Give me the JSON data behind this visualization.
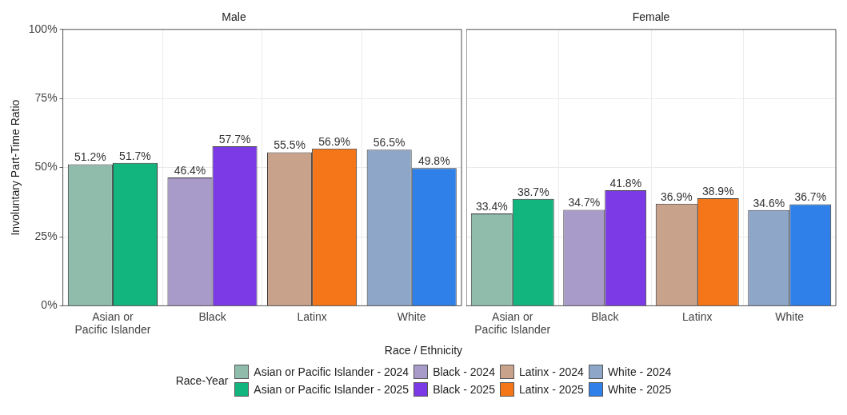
{
  "chart_data": [
    {
      "type": "bar",
      "title": "Male",
      "xlabel": "Race / Ethnicity",
      "ylabel": "Involuntary Part-Time Ratio",
      "legend_title": "Race-Year",
      "legend": "bottom",
      "grid": true,
      "categories": [
        "Asian or Pacific Islander",
        "Black",
        "Latinx",
        "White"
      ],
      "ylim": [
        0,
        100
      ],
      "yticks": [
        {
          "value": 0,
          "label": "0%"
        },
        {
          "value": 25,
          "label": "25%"
        },
        {
          "value": 50,
          "label": "50%"
        },
        {
          "value": 75,
          "label": "75%"
        },
        {
          "value": 100,
          "label": "100%"
        }
      ],
      "series": [
        {
          "name": "Asian or Pacific Islander - 2024",
          "color": "#8fbcab",
          "values": [
            51.2,
            null,
            null,
            null
          ],
          "value_labels": [
            "51.2%",
            null,
            null,
            null
          ]
        },
        {
          "name": "Asian or Pacific Islander - 2025",
          "color": "#13b57f",
          "values": [
            51.7,
            null,
            null,
            null
          ],
          "value_labels": [
            "51.7%",
            null,
            null,
            null
          ]
        },
        {
          "name": "Black - 2024",
          "color": "#a89ac9",
          "values": [
            null,
            46.4,
            null,
            null
          ],
          "value_labels": [
            null,
            "46.4%",
            null,
            null
          ]
        },
        {
          "name": "Black - 2025",
          "color": "#7b3ae6",
          "values": [
            null,
            57.7,
            null,
            null
          ],
          "value_labels": [
            null,
            "57.7%",
            null,
            null
          ]
        },
        {
          "name": "Latinx - 2024",
          "color": "#c9a28b",
          "values": [
            null,
            null,
            55.5,
            null
          ],
          "value_labels": [
            null,
            null,
            "55.5%",
            null
          ]
        },
        {
          "name": "Latinx - 2025",
          "color": "#f57618",
          "values": [
            null,
            null,
            56.9,
            null
          ],
          "value_labels": [
            null,
            null,
            "56.9%",
            null
          ]
        },
        {
          "name": "White - 2024",
          "color": "#8ea6c8",
          "values": [
            null,
            null,
            null,
            56.5
          ],
          "value_labels": [
            null,
            null,
            null,
            "56.5%"
          ]
        },
        {
          "name": "White - 2025",
          "color": "#2f80e8",
          "values": [
            null,
            null,
            null,
            49.8
          ],
          "value_labels": [
            null,
            null,
            null,
            "49.8%"
          ]
        }
      ]
    },
    {
      "type": "bar",
      "title": "Female",
      "grid": true,
      "tick_labels": "x",
      "categories": [
        "Asian or Pacific Islander",
        "Black",
        "Latinx",
        "White"
      ],
      "ylim": [
        0,
        100
      ],
      "yticks": [
        0,
        25,
        50,
        75,
        100
      ],
      "series": [
        {
          "color": "#8fbcab",
          "values": [
            33.4,
            null,
            null,
            null
          ],
          "value_labels": [
            "33.4%",
            null,
            null,
            null
          ]
        },
        {
          "color": "#13b57f",
          "values": [
            38.7,
            null,
            null,
            null
          ],
          "value_labels": [
            "38.7%",
            null,
            null,
            null
          ]
        },
        {
          "color": "#a89ac9",
          "values": [
            null,
            34.7,
            null,
            null
          ],
          "value_labels": [
            null,
            "34.7%",
            null,
            null
          ]
        },
        {
          "color": "#7b3ae6",
          "values": [
            null,
            41.8,
            null,
            null
          ],
          "value_labels": [
            null,
            "41.8%",
            null,
            null
          ]
        },
        {
          "color": "#c9a28b",
          "values": [
            null,
            null,
            36.9,
            null
          ],
          "value_labels": [
            null,
            null,
            "36.9%",
            null
          ]
        },
        {
          "color": "#f57618",
          "values": [
            null,
            null,
            38.9,
            null
          ],
          "value_labels": [
            null,
            null,
            "38.9%",
            null
          ]
        },
        {
          "color": "#8ea6c8",
          "values": [
            null,
            null,
            null,
            34.6
          ],
          "value_labels": [
            null,
            null,
            null,
            "34.6%"
          ]
        },
        {
          "color": "#2f80e8",
          "values": [
            null,
            null,
            null,
            36.7
          ],
          "value_labels": [
            null,
            null,
            null,
            "36.7%"
          ]
        }
      ]
    }
  ]
}
